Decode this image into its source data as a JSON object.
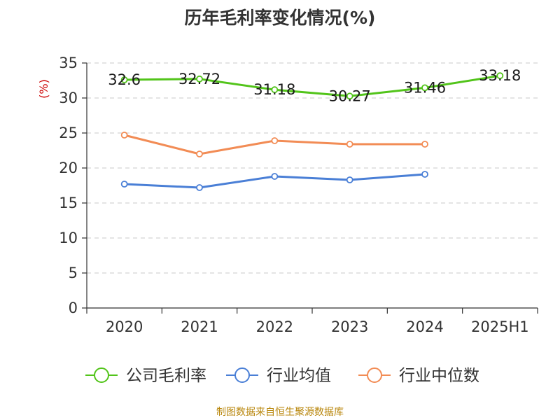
{
  "title": "历年毛利率变化情况(%)",
  "source": "制图数据来自恒生聚源数据库",
  "chart_data": {
    "type": "line",
    "title": "历年毛利率变化情况(%)",
    "ylabel": "(%)",
    "categories": [
      "2020",
      "2021",
      "2022",
      "2023",
      "2024",
      "2025H1"
    ],
    "yticks": [
      0,
      5,
      10,
      15,
      20,
      25,
      30,
      35
    ],
    "ylim": [
      0,
      35
    ],
    "grid": true,
    "grid_style": "dashed",
    "legend_position": "bottom",
    "series": [
      {
        "name": "公司毛利率",
        "color": "#52c41a",
        "values": [
          32.6,
          32.72,
          31.18,
          30.27,
          31.46,
          33.18
        ],
        "labels": [
          "32.6",
          "32.72",
          "31.18",
          "30.27",
          "31.46",
          "33.18"
        ],
        "show_labels": true
      },
      {
        "name": "行业均值",
        "color": "#4a7fd6",
        "values": [
          17.7,
          17.2,
          18.8,
          18.3,
          19.1,
          null
        ],
        "show_labels": false
      },
      {
        "name": "行业中位数",
        "color": "#f28c55",
        "values": [
          24.7,
          22.0,
          23.9,
          23.4,
          23.4,
          null
        ],
        "show_labels": false
      }
    ]
  }
}
